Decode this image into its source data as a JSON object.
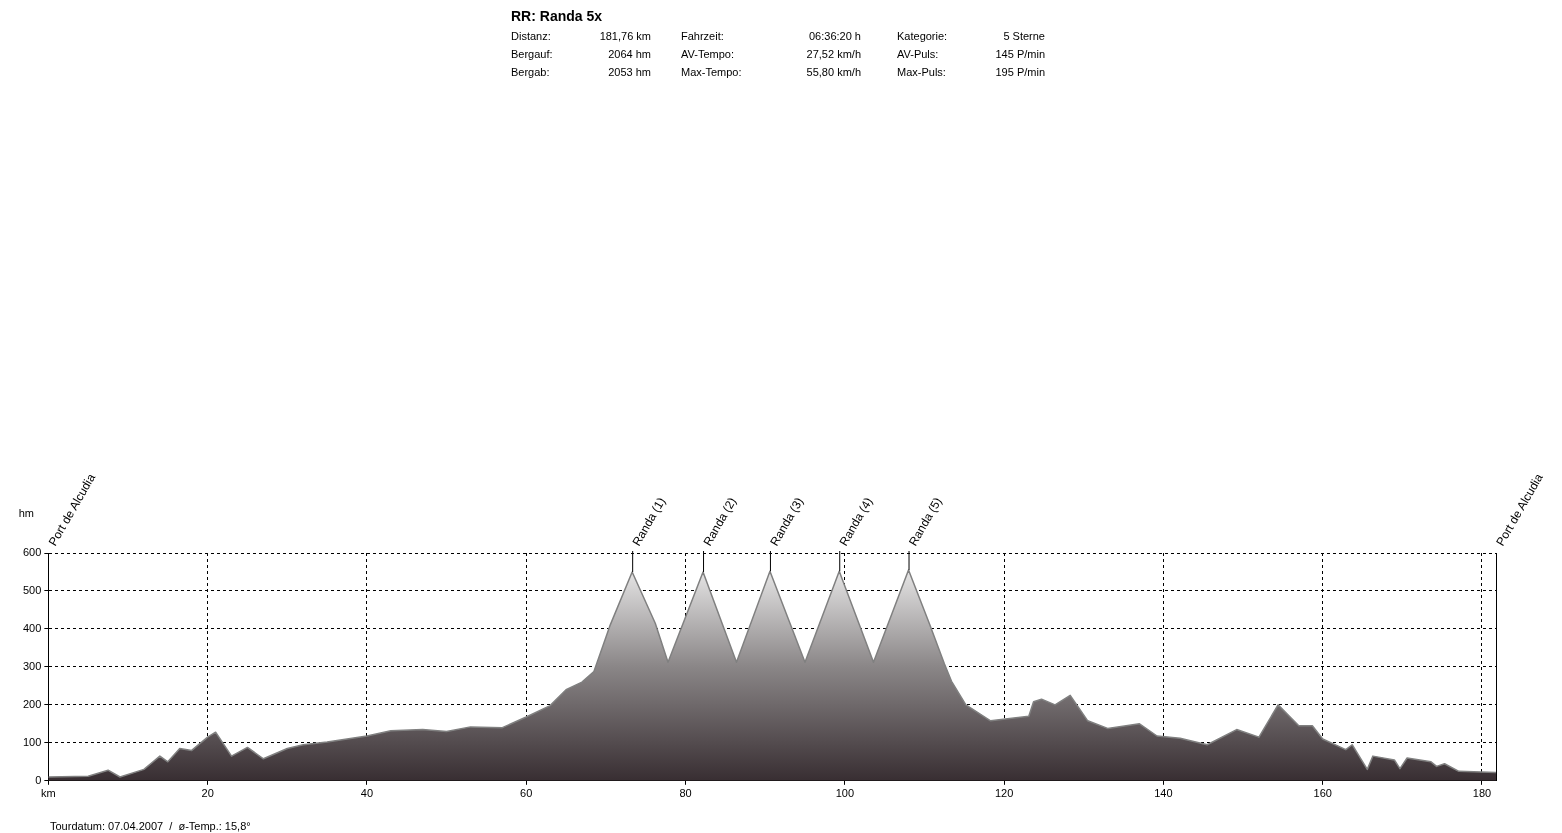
{
  "chart_data": {
    "type": "area",
    "title": "RR: Randa 5x",
    "ylabel": "hm",
    "annotations": [
      "Distanz:",
      "181,76 km",
      "Fahrzeit:",
      "06:36:20 h",
      "Kategorie:",
      "5 Sterne",
      "Bergauf:",
      "2064 hm",
      "AV-Tempo:",
      "27,52 km/h",
      "AV-Puls:",
      "145 P/min",
      "Bergab:",
      "2053 hm",
      "Max-Tempo:",
      "55,80 km/h",
      "Max-Puls:",
      "195 P/min",
      "Tourdatum: 07.04.2007  /  ø-Temp.: 15,8°",
      "Port de Alcudia",
      "Port de Alcudia",
      {
        "text": "Randa (1)",
        "x": 73.3,
        "y": 550
      },
      {
        "text": "Randa (2)",
        "x": 82.2,
        "y": 550
      },
      {
        "text": "Randa (3)",
        "x": 90.6,
        "y": 552
      },
      {
        "text": "Randa (4)",
        "x": 99.3,
        "y": 552
      },
      {
        "text": "Randa (5)",
        "x": 108,
        "y": 555
      }
    ],
    "x": [
      0,
      5,
      7.5,
      9,
      12,
      14,
      15,
      16.5,
      18,
      20,
      21,
      23,
      25,
      27,
      30,
      32,
      35,
      40,
      43,
      47,
      50,
      53,
      57,
      60,
      63,
      65,
      67,
      68.5,
      70.5,
      73.3,
      76.2,
      77.8,
      82.2,
      86.4,
      90.6,
      95,
      99.3,
      103.6,
      108,
      110.6,
      112.5,
      113.4,
      115.2,
      118.3,
      123.1,
      123.7,
      124.7,
      126.4,
      128.3,
      130.5,
      133,
      137,
      139.2,
      142.1,
      145.5,
      149.2,
      152,
      154.4,
      157,
      158.7,
      160,
      162.9,
      163.7,
      165.6,
      166.3,
      169,
      169.7,
      170.6,
      173.6,
      174.3,
      175.3,
      177.1,
      181.76
    ],
    "series": [
      {
        "color": "#808080",
        "values": [
          10,
          12,
          28,
          10,
          30,
          65,
          50,
          85,
          80,
          115,
          128,
          65,
          88,
          58,
          85,
          95,
          102,
          118,
          132,
          135,
          130,
          142,
          140,
          168,
          198,
          240,
          260,
          288,
          408,
          550,
          415,
          312,
          550,
          312,
          552,
          312,
          552,
          312,
          555,
          415,
          308,
          262,
          200,
          158,
          170,
          208,
          215,
          200,
          225,
          158,
          138,
          150,
          118,
          112,
          95,
          135,
          115,
          200,
          145,
          145,
          110,
          82,
          95,
          30,
          65,
          55,
          32,
          60,
          50,
          38,
          45,
          25,
          22
        ]
      }
    ],
    "xlim": [
      0,
      181.76
    ],
    "xticks": [
      {
        "value": 0,
        "label": "km"
      },
      20,
      40,
      60,
      80,
      100,
      120,
      140,
      160,
      180
    ],
    "ylim": [
      0,
      600
    ],
    "yticks": [
      0,
      100,
      200,
      300,
      400,
      500,
      600
    ],
    "grid": true,
    "legend": false,
    "marker": "none",
    "line_style": "solid"
  }
}
